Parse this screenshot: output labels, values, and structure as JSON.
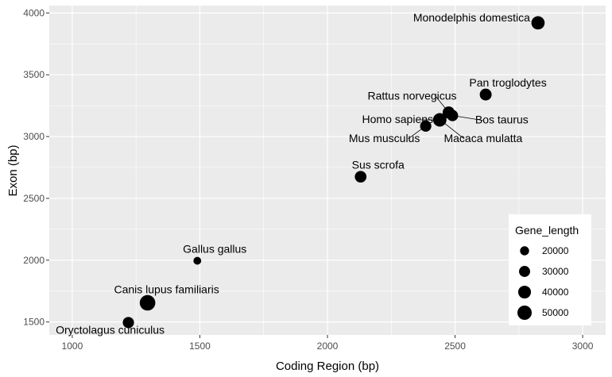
{
  "chart_data": {
    "type": "scatter",
    "xlabel": "Coding Region (bp)",
    "ylabel": "Exon (bp)",
    "xlim": [
      910,
      3090
    ],
    "ylim": [
      1395,
      4060
    ],
    "xticks": [
      1000,
      1500,
      2000,
      2500,
      3000
    ],
    "yticks": [
      1500,
      2000,
      2500,
      3000,
      3500,
      4000
    ],
    "grid": true,
    "legend_position": "bottom-right",
    "size_legend": {
      "title": "Gene_length",
      "entries": [
        {
          "value": 20000,
          "label": "20000"
        },
        {
          "value": 30000,
          "label": "30000"
        },
        {
          "value": 40000,
          "label": "40000"
        },
        {
          "value": 50000,
          "label": "50000"
        }
      ]
    },
    "points": [
      {
        "label": "Monodelphis domestica",
        "x": 2825,
        "y": 3920,
        "gene_length": 35000
      },
      {
        "label": "Pan troglodytes",
        "x": 2620,
        "y": 3340,
        "gene_length": 28000
      },
      {
        "label": "Rattus norvegicus",
        "x": 2475,
        "y": 3195,
        "gene_length": 29000
      },
      {
        "label": "Bos taurus",
        "x": 2490,
        "y": 3170,
        "gene_length": 25000
      },
      {
        "label": "Homo sapiens",
        "x": 2440,
        "y": 3135,
        "gene_length": 36000
      },
      {
        "label": "Macaca mulatta",
        "x": 2445,
        "y": 3130,
        "gene_length": 20000
      },
      {
        "label": "Mus musculus",
        "x": 2385,
        "y": 3085,
        "gene_length": 25000
      },
      {
        "label": "Sus scrofa",
        "x": 2130,
        "y": 2675,
        "gene_length": 27000
      },
      {
        "label": "Gallus gallus",
        "x": 1490,
        "y": 1995,
        "gene_length": 12000
      },
      {
        "label": "Canis lupus familiaris",
        "x": 1295,
        "y": 1655,
        "gene_length": 48000
      },
      {
        "label": "Oryctolagus cuniculus",
        "x": 1220,
        "y": 1495,
        "gene_length": 25000
      }
    ]
  }
}
